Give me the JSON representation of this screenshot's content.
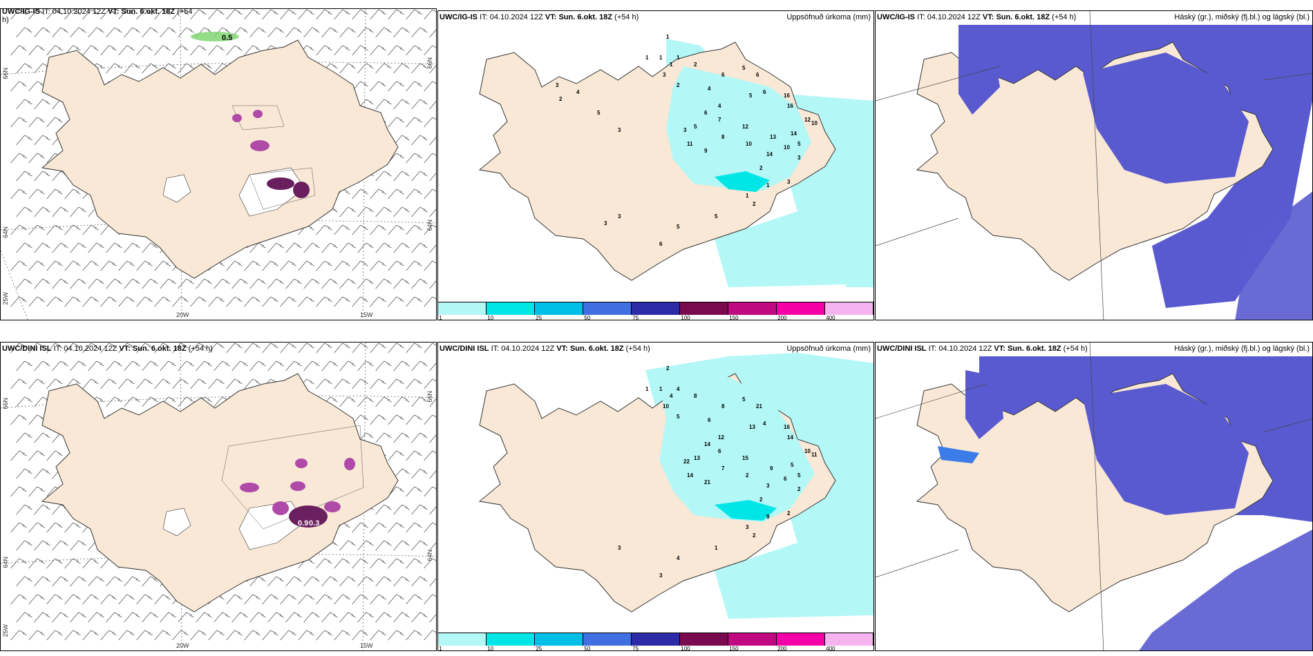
{
  "panels": [
    {
      "id": "r1c1",
      "model": "UWC/IG-IS",
      "it_label": "IT:",
      "it": "04.10.2024 12Z",
      "vt_label": "VT:",
      "vt": "Sun. 6.okt. 18Z",
      "lead": "(+54",
      "lead2": "h)",
      "right_title": ""
    },
    {
      "id": "r1c2",
      "model": "UWC/IG-IS",
      "it_label": "IT:",
      "it": "04.10.2024 12Z",
      "vt_label": "VT:",
      "vt": "Sun. 6.okt. 18Z",
      "lead": "(+54 h)",
      "right_title": "Uppsöfnuð úrkoma (mm)"
    },
    {
      "id": "r1c3",
      "model": "UWC/IG-IS",
      "it_label": "IT:",
      "it": "04.10.2024 12Z",
      "vt_label": "VT:",
      "vt": "Sun. 6.okt. 18Z",
      "lead": "(+54 h)",
      "right_title": "Háský (gr.), miðský (fj.bl.) og lágský (bl.)"
    },
    {
      "id": "r2c1",
      "model": "UWC/DINI ISL",
      "it_label": "IT:",
      "it": "04.10.2024 12Z",
      "vt_label": "VT:",
      "vt": "Sun. 6.okt. 18Z",
      "lead": "(+54 h)",
      "right_title": ""
    },
    {
      "id": "r2c2",
      "model": "UWC/DINI ISL",
      "it_label": "IT:",
      "it": "04.10.2024 12Z",
      "vt_label": "VT:",
      "vt": "Sun. 6.okt. 18Z",
      "lead": "(+54 h)",
      "right_title": "Uppsöfnuð úrkoma (mm)"
    },
    {
      "id": "r2c3",
      "model": "UWC/DINI ISL",
      "it_label": "IT:",
      "it": "04.10.2024 12Z",
      "vt_label": "VT:",
      "vt": "Sun. 6.okt. 18Z",
      "lead": "(+54 h)",
      "right_title": "Háský (gr.), miðský (fj.bl.) og lágský (bl.)"
    }
  ],
  "axis_labels": {
    "lat66": "66N",
    "lat64": "64N",
    "lon25": "25W",
    "lon20": "20W",
    "lon15": "15W",
    "r1_lat64": "64N"
  },
  "precip_legend": {
    "ticks": [
      "1",
      "10",
      "25",
      "50",
      "75",
      "100",
      "150",
      "200",
      "400"
    ],
    "colors": [
      "#b3f7f7",
      "#00e6e6",
      "#00bfe6",
      "#3f6fe0",
      "#2b2ba8",
      "#7a0a4f",
      "#c00880",
      "#f500a8",
      "#f5b3f0"
    ]
  },
  "colors": {
    "land": "#f9e8d6",
    "coast": "#333333",
    "precip_light": "#b3f7f7",
    "precip_mid": "#00e6e6",
    "cloud_high": "#5a5ad0",
    "cloud_low": "#3b7ce8",
    "icing_purple": "#b04aa8",
    "icing_dark": "#6a1f5e",
    "green": "#7ad36b"
  },
  "labels_r1c1": [
    "0.5"
  ],
  "labels_r2c1": [
    "0.9",
    "0.3"
  ],
  "precip_numbers_r1": [
    "1",
    "1",
    "1",
    "1",
    "1",
    "3",
    "2",
    "2",
    "4",
    "6",
    "5",
    "6",
    "6",
    "16",
    "16",
    "12",
    "14",
    "10",
    "5",
    "5",
    "4",
    "7",
    "6",
    "5",
    "3",
    "11",
    "9",
    "8",
    "12",
    "13",
    "10",
    "14",
    "10",
    "2",
    "3",
    "3",
    "1",
    "1",
    "2",
    "5",
    "5",
    "6",
    "3",
    "3",
    "4",
    "3",
    "2",
    "5",
    "3"
  ],
  "precip_numbers_r2": [
    "2",
    "1",
    "1",
    "4",
    "4",
    "10",
    "5",
    "8",
    "6",
    "8",
    "5",
    "21",
    "4",
    "16",
    "14",
    "10",
    "5",
    "11",
    "5",
    "13",
    "12",
    "6",
    "14",
    "13",
    "22",
    "14",
    "21",
    "7",
    "15",
    "9",
    "6",
    "3",
    "2",
    "2",
    "2",
    "2",
    "9",
    "3",
    "2",
    "1",
    "4",
    "3",
    "3"
  ]
}
